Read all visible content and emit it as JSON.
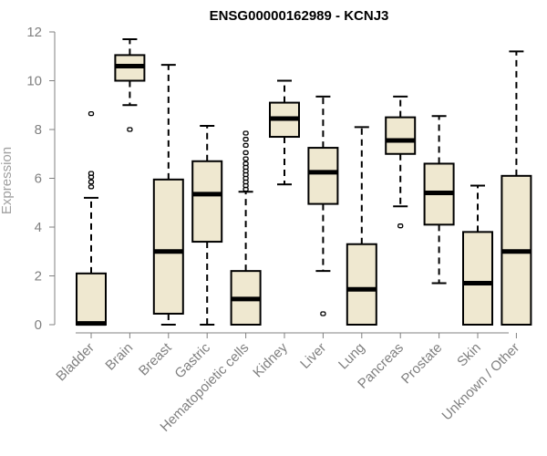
{
  "chart_data": {
    "type": "boxplot",
    "title": "ENSG00000162989 - KCNJ3",
    "xlabel": "",
    "ylabel": "Expression",
    "ylim": [
      0,
      12
    ],
    "yticks": [
      0,
      2,
      4,
      6,
      8,
      10,
      12
    ],
    "box_color": "#efe8d0",
    "categories": [
      "Bladder",
      "Brain",
      "Breast",
      "Gastric",
      "Hematopoietic cells",
      "Kidney",
      "Liver",
      "Lung",
      "Pancreas",
      "Prostate",
      "Skin",
      "Unknown / Other"
    ],
    "series": [
      {
        "name": "Bladder",
        "min": 0.0,
        "q1": 0.0,
        "median": 0.05,
        "q3": 2.1,
        "max": 5.2,
        "outliers": [
          5.65,
          5.85,
          6.05,
          6.2,
          8.65
        ]
      },
      {
        "name": "Brain",
        "min": 9.0,
        "q1": 10.0,
        "median": 10.6,
        "q3": 11.05,
        "max": 11.7,
        "outliers": [
          8.0
        ]
      },
      {
        "name": "Breast",
        "min": 0.0,
        "q1": 0.45,
        "median": 3.0,
        "q3": 5.95,
        "max": 10.65,
        "outliers": []
      },
      {
        "name": "Gastric",
        "min": 0.0,
        "q1": 3.4,
        "median": 5.35,
        "q3": 6.7,
        "max": 8.15,
        "outliers": []
      },
      {
        "name": "Hematopoietic cells",
        "min": 0.0,
        "q1": 0.0,
        "median": 1.05,
        "q3": 2.2,
        "max": 5.45,
        "outliers": [
          5.55,
          5.7,
          5.85,
          6.0,
          6.15,
          6.3,
          6.45,
          6.6,
          6.8,
          7.05,
          7.35,
          7.6,
          7.85
        ]
      },
      {
        "name": "Kidney",
        "min": 5.75,
        "q1": 7.7,
        "median": 8.45,
        "q3": 9.1,
        "max": 10.0,
        "outliers": []
      },
      {
        "name": "Liver",
        "min": 2.2,
        "q1": 4.95,
        "median": 6.25,
        "q3": 7.25,
        "max": 9.35,
        "outliers": [
          0.45
        ]
      },
      {
        "name": "Lung",
        "min": 0.0,
        "q1": 0.0,
        "median": 1.45,
        "q3": 3.3,
        "max": 8.1,
        "outliers": []
      },
      {
        "name": "Pancreas",
        "min": 4.85,
        "q1": 7.0,
        "median": 7.55,
        "q3": 8.5,
        "max": 9.35,
        "outliers": [
          4.05
        ]
      },
      {
        "name": "Prostate",
        "min": 1.7,
        "q1": 4.1,
        "median": 5.4,
        "q3": 6.6,
        "max": 8.55,
        "outliers": []
      },
      {
        "name": "Skin",
        "min": 0.0,
        "q1": 0.0,
        "median": 1.7,
        "q3": 3.8,
        "max": 5.7,
        "outliers": []
      },
      {
        "name": "Unknown / Other",
        "min": 0.0,
        "q1": 0.0,
        "median": 3.0,
        "q3": 6.1,
        "max": 11.2,
        "outliers": []
      }
    ]
  }
}
